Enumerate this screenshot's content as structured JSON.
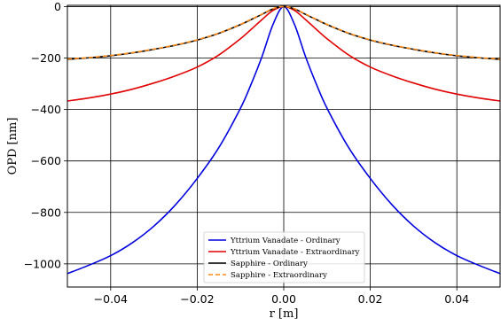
{
  "chart_data": {
    "type": "line",
    "title": "",
    "xlabel": "r [m]",
    "ylabel": "OPD [nm]",
    "xlim": [
      -0.05,
      0.05
    ],
    "ylim": [
      -1090,
      5
    ],
    "xticks": [
      -0.04,
      -0.02,
      0.0,
      0.02,
      0.04
    ],
    "xtick_labels": [
      "−0.04",
      "−0.02",
      "0.00",
      "0.02",
      "0.04"
    ],
    "yticks": [
      0,
      -200,
      -400,
      -600,
      -800,
      -1000
    ],
    "ytick_labels": [
      "0",
      "−200",
      "−400",
      "−600",
      "−800",
      "−1000"
    ],
    "grid": true,
    "legend_position": "lower-center",
    "series": [
      {
        "name": "Yttrium Vanadate -  Ordinary",
        "color": "#0000dd",
        "style": "solid",
        "x": [
          -0.05,
          -0.045,
          -0.04,
          -0.035,
          -0.03,
          -0.025,
          -0.02,
          -0.015,
          -0.01,
          -0.0075,
          -0.005,
          -0.0025,
          0.0,
          0.0025,
          0.005,
          0.0075,
          0.01,
          0.015,
          0.02,
          0.025,
          0.03,
          0.035,
          0.04,
          0.045,
          0.05
        ],
        "y": [
          -1038,
          -1005,
          -968,
          -918,
          -853,
          -770,
          -668,
          -548,
          -395,
          -300,
          -193,
          -70,
          0,
          -70,
          -193,
          -300,
          -395,
          -548,
          -668,
          -770,
          -853,
          -918,
          -968,
          -1005,
          -1038
        ]
      },
      {
        "name": "Yttrium Vanadate - Extraordinary",
        "color": "#e00000",
        "style": "solid",
        "x": [
          -0.05,
          -0.045,
          -0.04,
          -0.035,
          -0.03,
          -0.025,
          -0.02,
          -0.015,
          -0.01,
          -0.0075,
          -0.005,
          -0.0025,
          0.0,
          0.0025,
          0.005,
          0.0075,
          0.01,
          0.015,
          0.02,
          0.025,
          0.03,
          0.035,
          0.04,
          0.045,
          0.05
        ],
        "y": [
          -367,
          -355,
          -340,
          -321,
          -297,
          -269,
          -235,
          -188,
          -125,
          -88,
          -50,
          -15,
          0,
          -15,
          -50,
          -88,
          -125,
          -188,
          -235,
          -269,
          -297,
          -321,
          -340,
          -355,
          -367
        ]
      },
      {
        "name": "Sapphire -  Ordinary",
        "color": "#000000",
        "style": "solid",
        "x": [
          -0.05,
          -0.045,
          -0.04,
          -0.035,
          -0.03,
          -0.025,
          -0.02,
          -0.015,
          -0.01,
          -0.0075,
          -0.005,
          -0.0025,
          0.0,
          0.0025,
          0.005,
          0.0075,
          0.01,
          0.015,
          0.02,
          0.025,
          0.03,
          0.035,
          0.04,
          0.045,
          0.05
        ],
        "y": [
          -205,
          -199,
          -191,
          -180,
          -166,
          -150,
          -130,
          -104,
          -70,
          -50,
          -30,
          -9,
          0,
          -9,
          -30,
          -50,
          -70,
          -104,
          -130,
          -150,
          -166,
          -180,
          -191,
          -199,
          -205
        ]
      },
      {
        "name": "Sapphire - Extraordinary",
        "color": "#ff8c1a",
        "style": "dashed",
        "x": [
          -0.05,
          -0.045,
          -0.04,
          -0.035,
          -0.03,
          -0.025,
          -0.02,
          -0.015,
          -0.01,
          -0.0075,
          -0.005,
          -0.0025,
          0.0,
          0.0025,
          0.005,
          0.0075,
          0.01,
          0.015,
          0.02,
          0.025,
          0.03,
          0.035,
          0.04,
          0.045,
          0.05
        ],
        "y": [
          -204,
          -198,
          -190,
          -179,
          -165,
          -149,
          -129,
          -103,
          -69,
          -49,
          -29,
          -8,
          0,
          -8,
          -29,
          -49,
          -69,
          -103,
          -129,
          -149,
          -165,
          -179,
          -190,
          -198,
          -204
        ]
      }
    ]
  }
}
